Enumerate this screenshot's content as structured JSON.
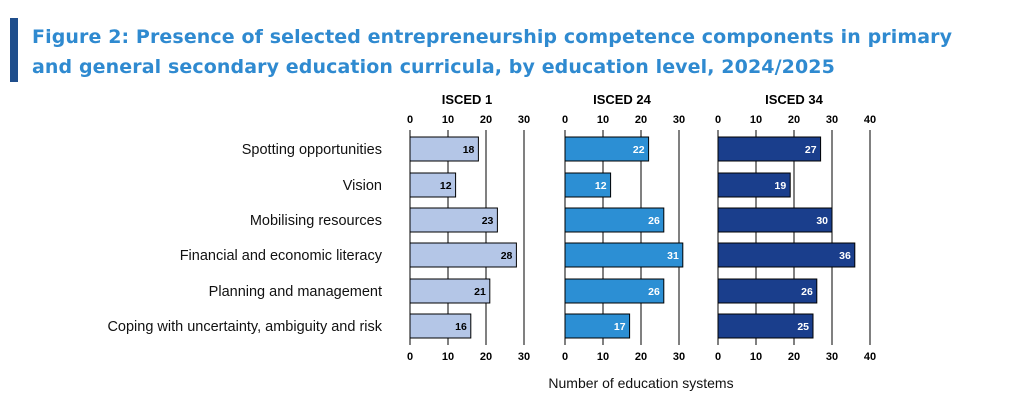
{
  "header": {
    "title": "Figure 2: Presence of selected entrepreneurship competence components in primary and general secondary education curricula, by education level, 2024/2025"
  },
  "chart_data": {
    "type": "bar",
    "orientation": "horizontal",
    "categories": [
      "Spotting opportunities",
      "Vision",
      "Mobilising resources",
      "Financial and economic literacy",
      "Planning and management",
      "Coping with uncertainty, ambiguity and risk"
    ],
    "xlabel": "Number of education systems",
    "grid": true,
    "panels": [
      {
        "name": "ISCED 1",
        "values": [
          18,
          12,
          23,
          28,
          21,
          16
        ],
        "xlim": [
          0,
          30
        ],
        "ticks": [
          0,
          10,
          20,
          30
        ],
        "color": "#b4c6e7",
        "label_color": "#000000"
      },
      {
        "name": "ISCED 24",
        "values": [
          22,
          12,
          26,
          31,
          26,
          17
        ],
        "xlim": [
          0,
          30
        ],
        "ticks": [
          0,
          10,
          20,
          30
        ],
        "color": "#2c8fd4",
        "label_color": "#ffffff"
      },
      {
        "name": "ISCED 34",
        "values": [
          27,
          19,
          30,
          36,
          26,
          25
        ],
        "xlim": [
          0,
          40
        ],
        "ticks": [
          0,
          10,
          20,
          30,
          40
        ],
        "color": "#1a3e8c",
        "label_color": "#ffffff"
      }
    ]
  }
}
